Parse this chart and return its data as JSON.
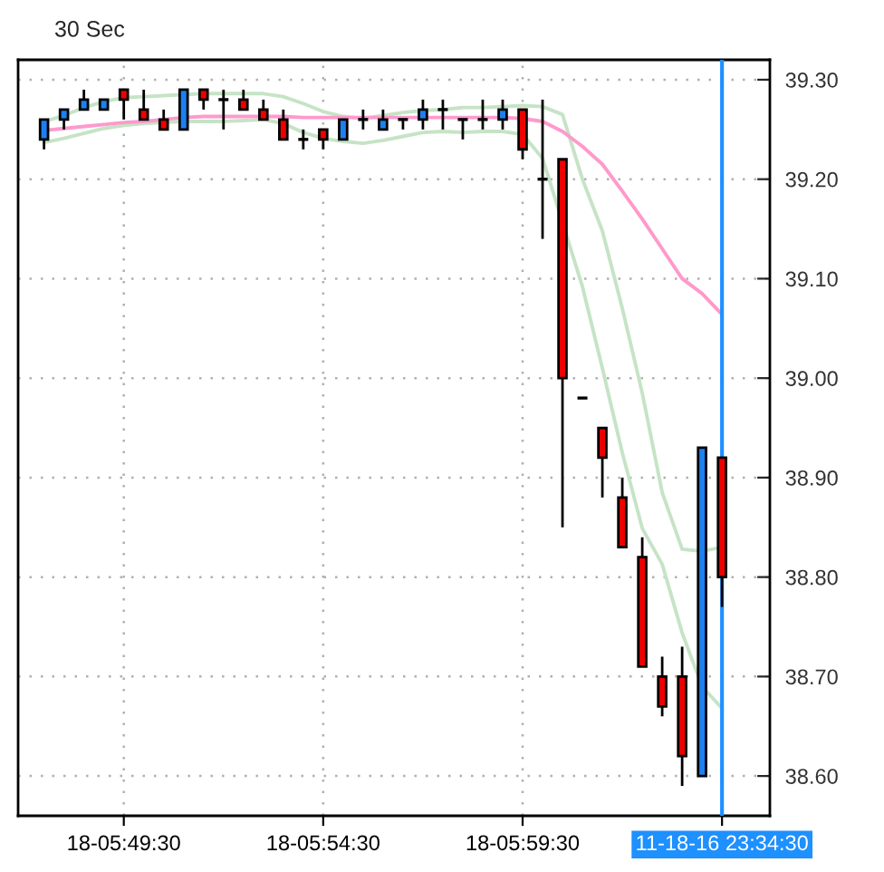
{
  "chart_data": {
    "type": "candlestick",
    "title": "30 Sec",
    "categories": [
      null,
      null,
      null,
      null,
      "18-05:49:30",
      null,
      null,
      null,
      null,
      null,
      null,
      null,
      null,
      null,
      "18-05:54:30",
      null,
      null,
      null,
      null,
      null,
      null,
      null,
      null,
      null,
      "18-05:59:30",
      null,
      null,
      null,
      null,
      null,
      null,
      null,
      null,
      null,
      "11-18-16 23:34:30"
    ],
    "ohlc": [
      [
        39.24,
        39.26,
        39.23,
        39.26
      ],
      [
        39.26,
        39.27,
        39.25,
        39.27
      ],
      [
        39.27,
        39.29,
        39.27,
        39.28
      ],
      [
        39.27,
        39.28,
        39.27,
        39.28
      ],
      [
        39.29,
        39.29,
        39.26,
        39.28
      ],
      [
        39.27,
        39.29,
        39.26,
        39.26
      ],
      [
        39.26,
        39.27,
        39.25,
        39.25
      ],
      [
        39.25,
        39.29,
        39.25,
        39.29
      ],
      [
        39.29,
        39.29,
        39.27,
        39.28
      ],
      [
        39.28,
        39.29,
        39.25,
        39.28
      ],
      [
        39.28,
        39.29,
        39.27,
        39.27
      ],
      [
        39.27,
        39.28,
        39.26,
        39.26
      ],
      [
        39.26,
        39.27,
        39.24,
        39.24
      ],
      [
        39.24,
        39.25,
        39.23,
        39.24
      ],
      [
        39.25,
        39.25,
        39.23,
        39.24
      ],
      [
        39.24,
        39.26,
        39.24,
        39.26
      ],
      [
        39.26,
        39.27,
        39.25,
        39.26
      ],
      [
        39.25,
        39.27,
        39.25,
        39.26
      ],
      [
        39.26,
        39.26,
        39.25,
        39.26
      ],
      [
        39.26,
        39.28,
        39.25,
        39.27
      ],
      [
        39.27,
        39.28,
        39.25,
        39.27
      ],
      [
        39.26,
        39.26,
        39.24,
        39.26
      ],
      [
        39.26,
        39.28,
        39.25,
        39.26
      ],
      [
        39.26,
        39.28,
        39.25,
        39.27
      ],
      [
        39.27,
        39.27,
        39.22,
        39.23
      ],
      [
        39.2,
        39.28,
        39.14,
        39.2
      ],
      [
        39.22,
        39.22,
        38.85,
        39.0
      ],
      [
        38.98,
        38.98,
        38.98,
        38.98
      ],
      [
        38.95,
        38.95,
        38.88,
        38.92
      ],
      [
        38.88,
        38.9,
        38.83,
        38.83
      ],
      [
        38.82,
        38.84,
        38.71,
        38.71
      ],
      [
        38.7,
        38.72,
        38.66,
        38.67
      ],
      [
        38.7,
        38.73,
        38.59,
        38.62
      ],
      [
        38.6,
        38.93,
        38.6,
        38.93
      ],
      [
        38.92,
        38.92,
        38.77,
        38.8
      ]
    ],
    "colors": [
      "#1e80f0",
      "#1e80f0",
      "#1e80f0",
      "#1e80f0",
      "#ee0000",
      "#ee0000",
      "#ee0000",
      "#1e80f0",
      "#ee0000",
      "#000000",
      "#ee0000",
      "#ee0000",
      "#ee0000",
      "#000000",
      "#ee0000",
      "#1e80f0",
      "#000000",
      "#1e80f0",
      "#000000",
      "#1e80f0",
      "#000000",
      "#000000",
      "#000000",
      "#1e80f0",
      "#ee0000",
      "#000000",
      "#ee0000",
      "#000000",
      "#ee0000",
      "#ee0000",
      "#ee0000",
      "#ee0000",
      "#ee0000",
      "#1e80f0",
      "#ee0000"
    ],
    "series": [
      {
        "type": "line",
        "color": "#c6e3c6",
        "values": [
          39.258,
          39.264,
          39.272,
          39.278,
          39.282,
          39.283,
          39.284,
          39.285,
          39.286,
          39.286,
          39.286,
          39.286,
          39.283,
          39.276,
          39.268,
          39.263,
          39.261,
          39.264,
          39.267,
          39.269,
          39.27,
          39.272,
          39.272,
          39.273,
          39.274,
          39.273,
          39.265,
          39.2,
          39.148,
          39.07,
          38.985,
          38.885,
          38.828,
          38.826,
          38.83
        ]
      },
      {
        "type": "line",
        "color": "#c6e3c6",
        "values": [
          39.237,
          39.241,
          39.246,
          39.251,
          39.254,
          39.256,
          39.257,
          39.258,
          39.258,
          39.258,
          39.259,
          39.26,
          39.256,
          39.247,
          39.241,
          39.238,
          39.236,
          39.239,
          39.243,
          39.247,
          39.248,
          39.247,
          39.248,
          39.248,
          39.245,
          39.221,
          null,
          39.092,
          39.01,
          38.925,
          38.849,
          38.813,
          38.744,
          38.69,
          38.668
        ]
      },
      {
        "type": "line",
        "color": "#ff99cc",
        "values": [
          39.249,
          39.251,
          39.253,
          39.255,
          39.257,
          39.258,
          39.26,
          39.262,
          39.263,
          39.263,
          39.263,
          39.263,
          39.263,
          39.262,
          39.262,
          39.262,
          39.262,
          39.262,
          39.262,
          39.262,
          39.262,
          39.262,
          39.262,
          39.262,
          39.261,
          39.258,
          39.248,
          39.233,
          39.215,
          39.188,
          39.16,
          39.13,
          39.1,
          39.085,
          39.064
        ]
      }
    ],
    "ylim": [
      38.56,
      39.32
    ],
    "yticks": [
      {
        "value": 38.6,
        "label": "38.60"
      },
      {
        "value": 38.7,
        "label": "38.70"
      },
      {
        "value": 38.8,
        "label": "38.80"
      },
      {
        "value": 38.9,
        "label": "38.90"
      },
      {
        "value": 39.0,
        "label": "39.00"
      },
      {
        "value": 39.1,
        "label": "39.10"
      },
      {
        "value": 39.2,
        "label": "39.20"
      },
      {
        "value": 39.3,
        "label": "39.30"
      }
    ],
    "grid": true,
    "ref_lines": [
      {
        "axis": "x",
        "value": "11-18-16 23:34:30",
        "color": "#1e90ff"
      }
    ]
  }
}
